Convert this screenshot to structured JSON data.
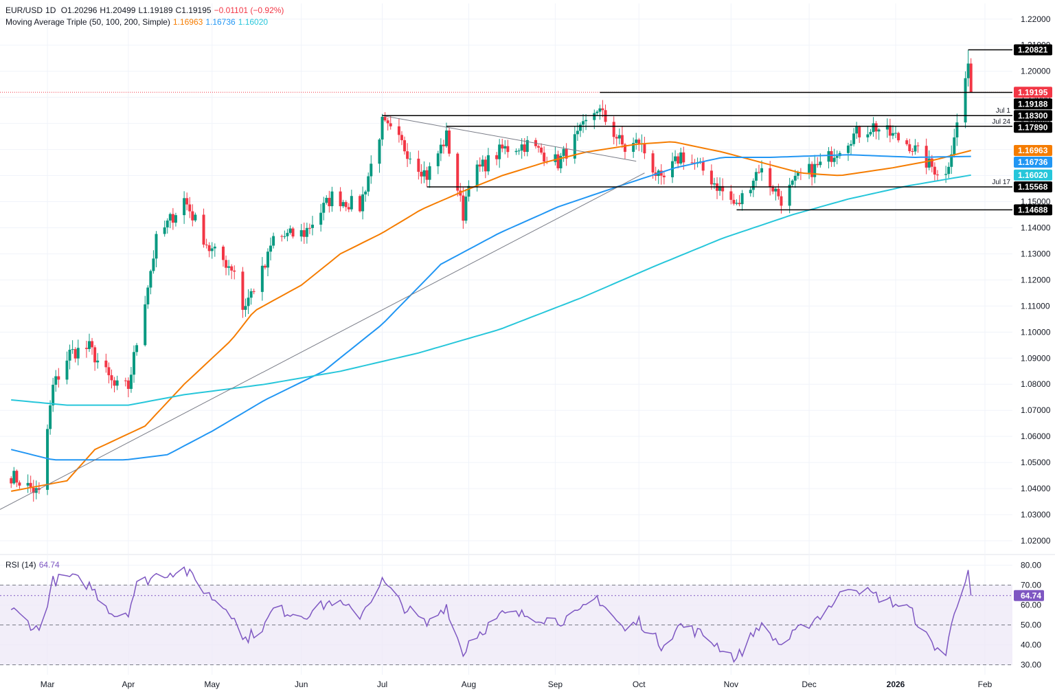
{
  "header": {
    "symbol": "EUR/USD",
    "interval": "1D",
    "open": "O1.20296",
    "high": "H1.20499",
    "low": "L1.19189",
    "close": "C1.19195",
    "change": "−0.01101 (−0.92%)"
  },
  "ma_legend": {
    "label": "Moving Average Triple (50, 100, 200, Simple)",
    "ma50": "1.16963",
    "ma100": "1.16736",
    "ma200": "1.16020"
  },
  "rsi_legend": {
    "label": "RSI (14)",
    "value": "64.74"
  },
  "colors": {
    "up": "#089981",
    "down": "#f23645",
    "ma50": "#f57c00",
    "ma100": "#2196f3",
    "ma200": "#26c6da",
    "rsi": "#7e57c2",
    "grid": "#f0f3fa",
    "level": "#000000",
    "axis_text": "#131722",
    "rsi_band": "#ede7f6"
  },
  "chart_data": [
    {
      "type": "candlestick",
      "ylim": [
        1.015,
        1.226
      ],
      "yticks": [
        1.02,
        1.03,
        1.04,
        1.05,
        1.06,
        1.07,
        1.08,
        1.09,
        1.1,
        1.11,
        1.12,
        1.13,
        1.14,
        1.15,
        1.16,
        1.17,
        1.18,
        1.19,
        1.2,
        1.21,
        1.22
      ],
      "ytick_labels": [
        "1.02000",
        "1.03000",
        "1.04000",
        "1.05000",
        "1.06000",
        "1.07000",
        "1.08000",
        "1.09000",
        "1.10000",
        "1.11000",
        "1.12000",
        "1.13000",
        "1.14000",
        "1.15000",
        "1.16000",
        "1.17000",
        "1.18000",
        "1.19000",
        "1.20000",
        "1.21000",
        "1.22000"
      ],
      "x_months": [
        {
          "label": "Mar",
          "date": "2025-03-03"
        },
        {
          "label": "Apr",
          "date": "2025-04-01"
        },
        {
          "label": "May",
          "date": "2025-05-01"
        },
        {
          "label": "Jun",
          "date": "2025-06-02"
        },
        {
          "label": "Jul",
          "date": "2025-07-01"
        },
        {
          "label": "Aug",
          "date": "2025-08-01"
        },
        {
          "label": "Sep",
          "date": "2025-09-01"
        },
        {
          "label": "Oct",
          "date": "2025-10-01"
        },
        {
          "label": "Nov",
          "date": "2025-11-03"
        },
        {
          "label": "Dec",
          "date": "2025-12-01"
        },
        {
          "label": "2026",
          "date": "2026-01-01",
          "bold": true
        },
        {
          "label": "Feb",
          "date": "2026-02-02"
        }
      ],
      "close_anchors": [
        [
          "2025-02-18",
          1.045
        ],
        [
          "2025-02-28",
          1.038
        ],
        [
          "2025-03-05",
          1.079
        ],
        [
          "2025-03-11",
          1.092
        ],
        [
          "2025-03-18",
          1.094
        ],
        [
          "2025-03-27",
          1.079
        ],
        [
          "2025-04-01",
          1.079
        ],
        [
          "2025-04-04",
          1.096
        ],
        [
          "2025-04-11",
          1.135
        ],
        [
          "2025-04-21",
          1.151
        ],
        [
          "2025-04-30",
          1.132
        ],
        [
          "2025-05-09",
          1.124
        ],
        [
          "2025-05-12",
          1.109
        ],
        [
          "2025-05-20",
          1.125
        ],
        [
          "2025-05-23",
          1.136
        ],
        [
          "2025-06-03",
          1.138
        ],
        [
          "2025-06-13",
          1.152
        ],
        [
          "2025-06-23",
          1.148
        ],
        [
          "2025-07-01",
          1.18
        ],
        [
          "2025-07-08",
          1.172
        ],
        [
          "2025-07-17",
          1.16
        ],
        [
          "2025-07-24",
          1.175
        ],
        [
          "2025-07-30",
          1.145
        ],
        [
          "2025-08-01",
          1.159
        ],
        [
          "2025-08-13",
          1.17
        ],
        [
          "2025-08-22",
          1.172
        ],
        [
          "2025-09-02",
          1.165
        ],
        [
          "2025-09-09",
          1.175
        ],
        [
          "2025-09-16",
          1.186
        ],
        [
          "2025-09-26",
          1.17
        ],
        [
          "2025-10-01",
          1.173
        ],
        [
          "2025-10-09",
          1.157
        ],
        [
          "2025-10-16",
          1.168
        ],
        [
          "2025-10-24",
          1.162
        ],
        [
          "2025-11-05",
          1.148
        ],
        [
          "2025-11-13",
          1.163
        ],
        [
          "2025-11-21",
          1.151
        ],
        [
          "2025-11-28",
          1.16
        ],
        [
          "2025-12-05",
          1.164
        ],
        [
          "2025-12-16",
          1.175
        ],
        [
          "2025-12-24",
          1.179
        ],
        [
          "2026-01-06",
          1.172
        ],
        [
          "2026-01-13",
          1.164
        ],
        [
          "2026-01-19",
          1.16
        ],
        [
          "2026-01-22",
          1.176
        ],
        [
          "2026-01-24",
          1.183
        ],
        [
          "2026-01-27",
          1.204
        ],
        [
          "2026-01-28",
          1.192
        ]
      ],
      "last_candle": {
        "date": "2026-01-28",
        "open": 1.20296,
        "high": 1.20499,
        "low": 1.19189,
        "close": 1.19195
      },
      "moving_averages": [
        {
          "name": "50",
          "points": [
            [
              "2025-02-18",
              1.039
            ],
            [
              "2025-03-10",
              1.043
            ],
            [
              "2025-03-20",
              1.055
            ],
            [
              "2025-04-07",
              1.064
            ],
            [
              "2025-04-21",
              1.08
            ],
            [
              "2025-05-08",
              1.097
            ],
            [
              "2025-05-16",
              1.108
            ],
            [
              "2025-06-02",
              1.118
            ],
            [
              "2025-06-16",
              1.13
            ],
            [
              "2025-07-01",
              1.138
            ],
            [
              "2025-07-15",
              1.147
            ],
            [
              "2025-07-30",
              1.154
            ],
            [
              "2025-08-13",
              1.16
            ],
            [
              "2025-08-28",
              1.165
            ],
            [
              "2025-09-12",
              1.169
            ],
            [
              "2025-09-30",
              1.172
            ],
            [
              "2025-10-13",
              1.173
            ],
            [
              "2025-10-31",
              1.169
            ],
            [
              "2025-11-14",
              1.165
            ],
            [
              "2025-11-28",
              1.161
            ],
            [
              "2025-12-12",
              1.16
            ],
            [
              "2025-12-31",
              1.163
            ],
            [
              "2026-01-15",
              1.166
            ],
            [
              "2026-01-28",
              1.16963
            ]
          ]
        },
        {
          "name": "100",
          "points": [
            [
              "2025-02-18",
              1.055
            ],
            [
              "2025-03-05",
              1.051
            ],
            [
              "2025-03-31",
              1.051
            ],
            [
              "2025-04-15",
              1.053
            ],
            [
              "2025-05-01",
              1.062
            ],
            [
              "2025-05-20",
              1.074
            ],
            [
              "2025-06-10",
              1.085
            ],
            [
              "2025-07-01",
              1.103
            ],
            [
              "2025-07-22",
              1.126
            ],
            [
              "2025-08-12",
              1.138
            ],
            [
              "2025-09-02",
              1.148
            ],
            [
              "2025-09-24",
              1.156
            ],
            [
              "2025-10-14",
              1.163
            ],
            [
              "2025-10-31",
              1.167
            ],
            [
              "2025-11-17",
              1.167
            ],
            [
              "2025-12-15",
              1.168
            ],
            [
              "2026-01-08",
              1.167
            ],
            [
              "2026-01-28",
              1.16736
            ]
          ]
        },
        {
          "name": "200",
          "points": [
            [
              "2025-02-18",
              1.074
            ],
            [
              "2025-03-10",
              1.072
            ],
            [
              "2025-04-01",
              1.072
            ],
            [
              "2025-04-21",
              1.076
            ],
            [
              "2025-05-20",
              1.08
            ],
            [
              "2025-06-16",
              1.085
            ],
            [
              "2025-07-14",
              1.092
            ],
            [
              "2025-08-12",
              1.101
            ],
            [
              "2025-09-10",
              1.113
            ],
            [
              "2025-10-06",
              1.125
            ],
            [
              "2025-10-31",
              1.136
            ],
            [
              "2025-11-25",
              1.145
            ],
            [
              "2025-12-15",
              1.151
            ],
            [
              "2026-01-05",
              1.156
            ],
            [
              "2026-01-28",
              1.1602
            ]
          ]
        }
      ],
      "levels": [
        {
          "value": 1.20821,
          "label": "1.20821",
          "from": "2026-01-27",
          "color": "#000000"
        },
        {
          "value": 1.19195,
          "label": "1.19195",
          "color": "#f23645",
          "current": true
        },
        {
          "value": 1.19188,
          "label": "1.19188",
          "from": "2025-09-17",
          "color": "#000000"
        },
        {
          "value": 1.183,
          "label": "1.18300",
          "from": "2025-07-01",
          "color": "#000000",
          "note": "Jul 1"
        },
        {
          "value": 1.1789,
          "label": "1.17890",
          "from": "2025-07-24",
          "color": "#000000",
          "note": "Jul 24"
        },
        {
          "value": 1.16963,
          "label": "1.16963",
          "color": "#f57c00",
          "ma": true
        },
        {
          "value": 1.16736,
          "label": "1.16736",
          "color": "#2196f3",
          "ma": true
        },
        {
          "value": 1.1602,
          "label": "1.16020",
          "color": "#26c6da",
          "ma": true
        },
        {
          "value": 1.15568,
          "label": "1.15568",
          "from": "2025-07-17",
          "color": "#000000",
          "note": "Jul 17"
        },
        {
          "value": 1.14688,
          "label": "1.14688",
          "from": "2025-11-05",
          "color": "#000000"
        }
      ],
      "trendlines": [
        {
          "from": [
            "2025-02-14",
            1.032
          ],
          "to": [
            "2025-10-03",
            1.161
          ]
        },
        {
          "from": [
            "2025-07-01",
            1.183
          ],
          "to": [
            "2025-09-30",
            1.1655
          ]
        }
      ]
    },
    {
      "type": "line",
      "ylim": [
        25,
        85
      ],
      "yticks": [
        30,
        40,
        50,
        60,
        70,
        80
      ],
      "ytick_labels": [
        "30.00",
        "40.00",
        "50.00",
        "60.00",
        "70.00",
        "80.00"
      ],
      "band": [
        30,
        70
      ],
      "midline": 50,
      "current": 64.74,
      "rsi_anchors": [
        [
          "2025-02-18",
          58
        ],
        [
          "2025-02-28",
          47
        ],
        [
          "2025-03-05",
          72
        ],
        [
          "2025-03-11",
          74
        ],
        [
          "2025-03-18",
          70
        ],
        [
          "2025-03-27",
          55
        ],
        [
          "2025-04-01",
          57
        ],
        [
          "2025-04-04",
          70
        ],
        [
          "2025-04-11",
          75
        ],
        [
          "2025-04-21",
          78
        ],
        [
          "2025-04-30",
          65
        ],
        [
          "2025-05-09",
          55
        ],
        [
          "2025-05-12",
          42
        ],
        [
          "2025-05-20",
          50
        ],
        [
          "2025-05-23",
          58
        ],
        [
          "2025-06-03",
          55
        ],
        [
          "2025-06-13",
          62
        ],
        [
          "2025-06-23",
          55
        ],
        [
          "2025-07-01",
          72
        ],
        [
          "2025-07-08",
          60
        ],
        [
          "2025-07-17",
          50
        ],
        [
          "2025-07-24",
          60
        ],
        [
          "2025-07-30",
          35
        ],
        [
          "2025-08-01",
          42
        ],
        [
          "2025-08-13",
          55
        ],
        [
          "2025-08-22",
          55
        ],
        [
          "2025-09-02",
          52
        ],
        [
          "2025-09-09",
          55
        ],
        [
          "2025-09-16",
          64
        ],
        [
          "2025-09-26",
          47
        ],
        [
          "2025-10-01",
          52
        ],
        [
          "2025-10-09",
          40
        ],
        [
          "2025-10-16",
          50
        ],
        [
          "2025-10-24",
          45
        ],
        [
          "2025-11-05",
          33
        ],
        [
          "2025-11-13",
          50
        ],
        [
          "2025-11-21",
          40
        ],
        [
          "2025-11-28",
          48
        ],
        [
          "2025-12-05",
          55
        ],
        [
          "2025-12-16",
          70
        ],
        [
          "2025-12-24",
          65
        ],
        [
          "2026-01-06",
          58
        ],
        [
          "2026-01-13",
          42
        ],
        [
          "2026-01-19",
          35
        ],
        [
          "2026-01-22",
          57
        ],
        [
          "2026-01-24",
          66
        ],
        [
          "2026-01-27",
          78
        ],
        [
          "2026-01-28",
          64.74
        ]
      ]
    }
  ]
}
